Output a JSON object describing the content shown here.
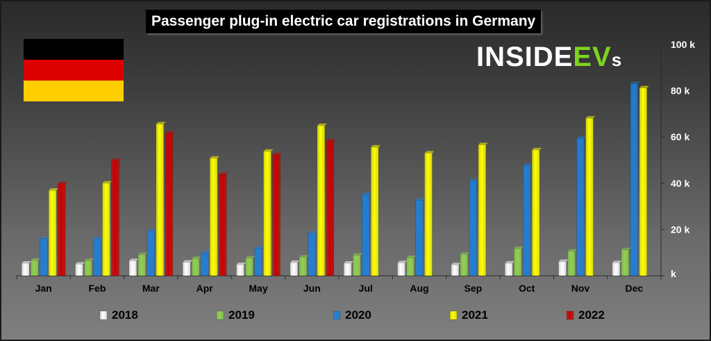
{
  "chart_data": {
    "type": "bar",
    "title": "Passenger plug-in electric car registrations in Germany",
    "categories": [
      "Jan",
      "Feb",
      "Mar",
      "Apr",
      "May",
      "Jun",
      "Jul",
      "Aug",
      "Sep",
      "Oct",
      "Nov",
      "Dec"
    ],
    "series": [
      {
        "name": "2018",
        "color": "#ffffff",
        "values": [
          5400,
          5000,
          6500,
          5800,
          4800,
          5700,
          5400,
          5600,
          4700,
          5400,
          6100,
          5600
        ]
      },
      {
        "name": "2019",
        "color": "#8fd14f",
        "values": [
          6600,
          6500,
          9100,
          7400,
          7600,
          8000,
          8800,
          7800,
          9200,
          11700,
          10600,
          11200
        ]
      },
      {
        "name": "2020",
        "color": "#1e7fd8",
        "values": [
          16000,
          16000,
          19300,
          9900,
          11800,
          18400,
          35100,
          32700,
          41000,
          47600,
          59400,
          83000
        ]
      },
      {
        "name": "2021",
        "color": "#ffff00",
        "values": [
          36900,
          40000,
          65600,
          50800,
          53800,
          64900,
          55600,
          53000,
          56600,
          54400,
          68100,
          81200
        ]
      },
      {
        "name": "2022",
        "color": "#cc0000",
        "values": [
          39800,
          49900,
          61600,
          43800,
          52300,
          58300,
          null,
          null,
          null,
          null,
          null,
          null
        ]
      }
    ],
    "y_ticks": [
      "k",
      "20 k",
      "40 k",
      "60 k",
      "80 k",
      "100 k"
    ],
    "ylim": [
      0,
      100000
    ],
    "legend_position": "bottom",
    "grid": false
  },
  "logo": {
    "main": "INSIDE",
    "accent": "EV",
    "tail": "s"
  },
  "flag_colors": [
    "#000000",
    "#dd0000",
    "#ffce00"
  ]
}
